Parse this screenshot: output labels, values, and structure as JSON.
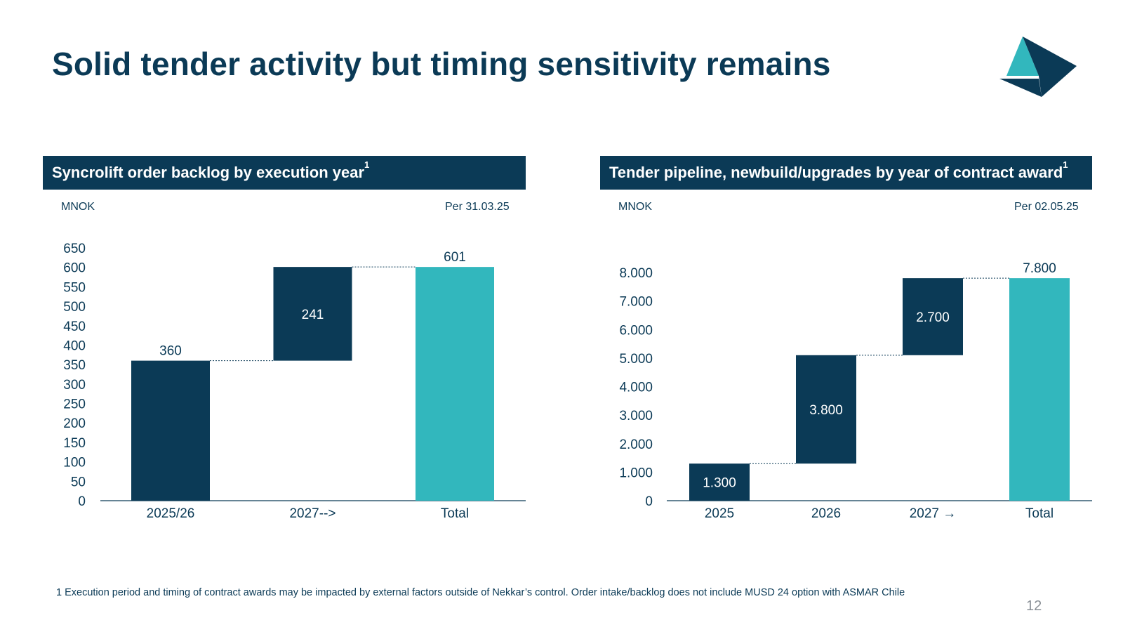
{
  "slide": {
    "title": "Solid tender activity but timing sensitivity remains",
    "footnote": "1 Execution period and timing of contract awards may be impacted by external factors outside of Nekkar’s control. Order intake/backlog does not include MUSD 24 option with ASMAR Chile",
    "page_number": "12"
  },
  "colors": {
    "navy": "#0b3a56",
    "teal": "#32b7bd",
    "white": "#ffffff"
  },
  "left_panel": {
    "header": "Syncrolift order backlog by execution year",
    "header_sup": "1",
    "unit": "MNOK",
    "as_of": "Per 31.03.25"
  },
  "right_panel": {
    "header": "Tender pipeline, newbuild/upgrades by year of contract award",
    "header_sup": "1",
    "unit": "MNOK",
    "as_of": "Per 02.05.25"
  },
  "chart_data": [
    {
      "type": "bar",
      "subtype": "waterfall",
      "categories": [
        "2025/26",
        "2027-->",
        "Total"
      ],
      "values": [
        360,
        241,
        601
      ],
      "bases": [
        0,
        360,
        0
      ],
      "labels": [
        "360",
        "241",
        "601"
      ],
      "label_inside": [
        false,
        true,
        false
      ],
      "bar_colors": [
        "navy",
        "navy",
        "teal"
      ],
      "yticks": [
        "0",
        "50",
        "100",
        "150",
        "200",
        "250",
        "300",
        "350",
        "400",
        "450",
        "500",
        "550",
        "600",
        "650"
      ],
      "ylim": [
        0,
        650
      ],
      "grid": false
    },
    {
      "type": "bar",
      "subtype": "waterfall",
      "categories": [
        "2025",
        "2026",
        "2027 →",
        "Total"
      ],
      "values": [
        1300,
        3800,
        2700,
        7800
      ],
      "bases": [
        0,
        1300,
        5100,
        0
      ],
      "labels": [
        "1.300",
        "3.800",
        "2.700",
        "7.800"
      ],
      "label_inside": [
        true,
        true,
        true,
        false
      ],
      "bar_colors": [
        "navy",
        "navy",
        "navy",
        "teal"
      ],
      "yticks": [
        "0",
        "1.000",
        "2.000",
        "3.000",
        "4.000",
        "5.000",
        "6.000",
        "7.000",
        "8.000"
      ],
      "ylim": [
        0,
        8000
      ],
      "grid": false
    }
  ]
}
